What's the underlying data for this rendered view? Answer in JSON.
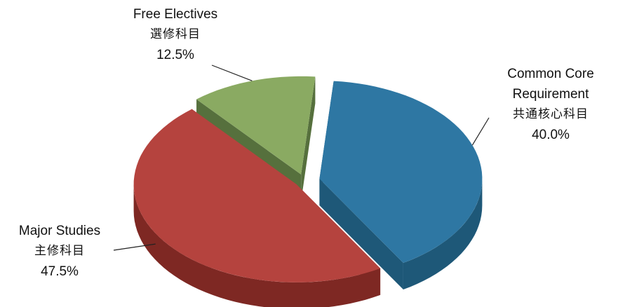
{
  "chart_data": {
    "type": "pie",
    "style": "3d-exploded",
    "title": "",
    "slices": [
      {
        "name": "Common Core Requirement",
        "name_zh": "共通核心科目",
        "value": 40.0,
        "value_label": "40.0%",
        "color": "#2e77a3",
        "side_color": "#1e5878"
      },
      {
        "name": "Major Studies",
        "name_zh": "主修科目",
        "value": 47.5,
        "value_label": "47.5%",
        "color": "#b5433e",
        "side_color": "#7e2823"
      },
      {
        "name": "Free Electives",
        "name_zh": "選修科目",
        "value": 12.5,
        "value_label": "12.5%",
        "color": "#8aaa62",
        "side_color": "#56703d"
      }
    ],
    "legend": "none"
  }
}
